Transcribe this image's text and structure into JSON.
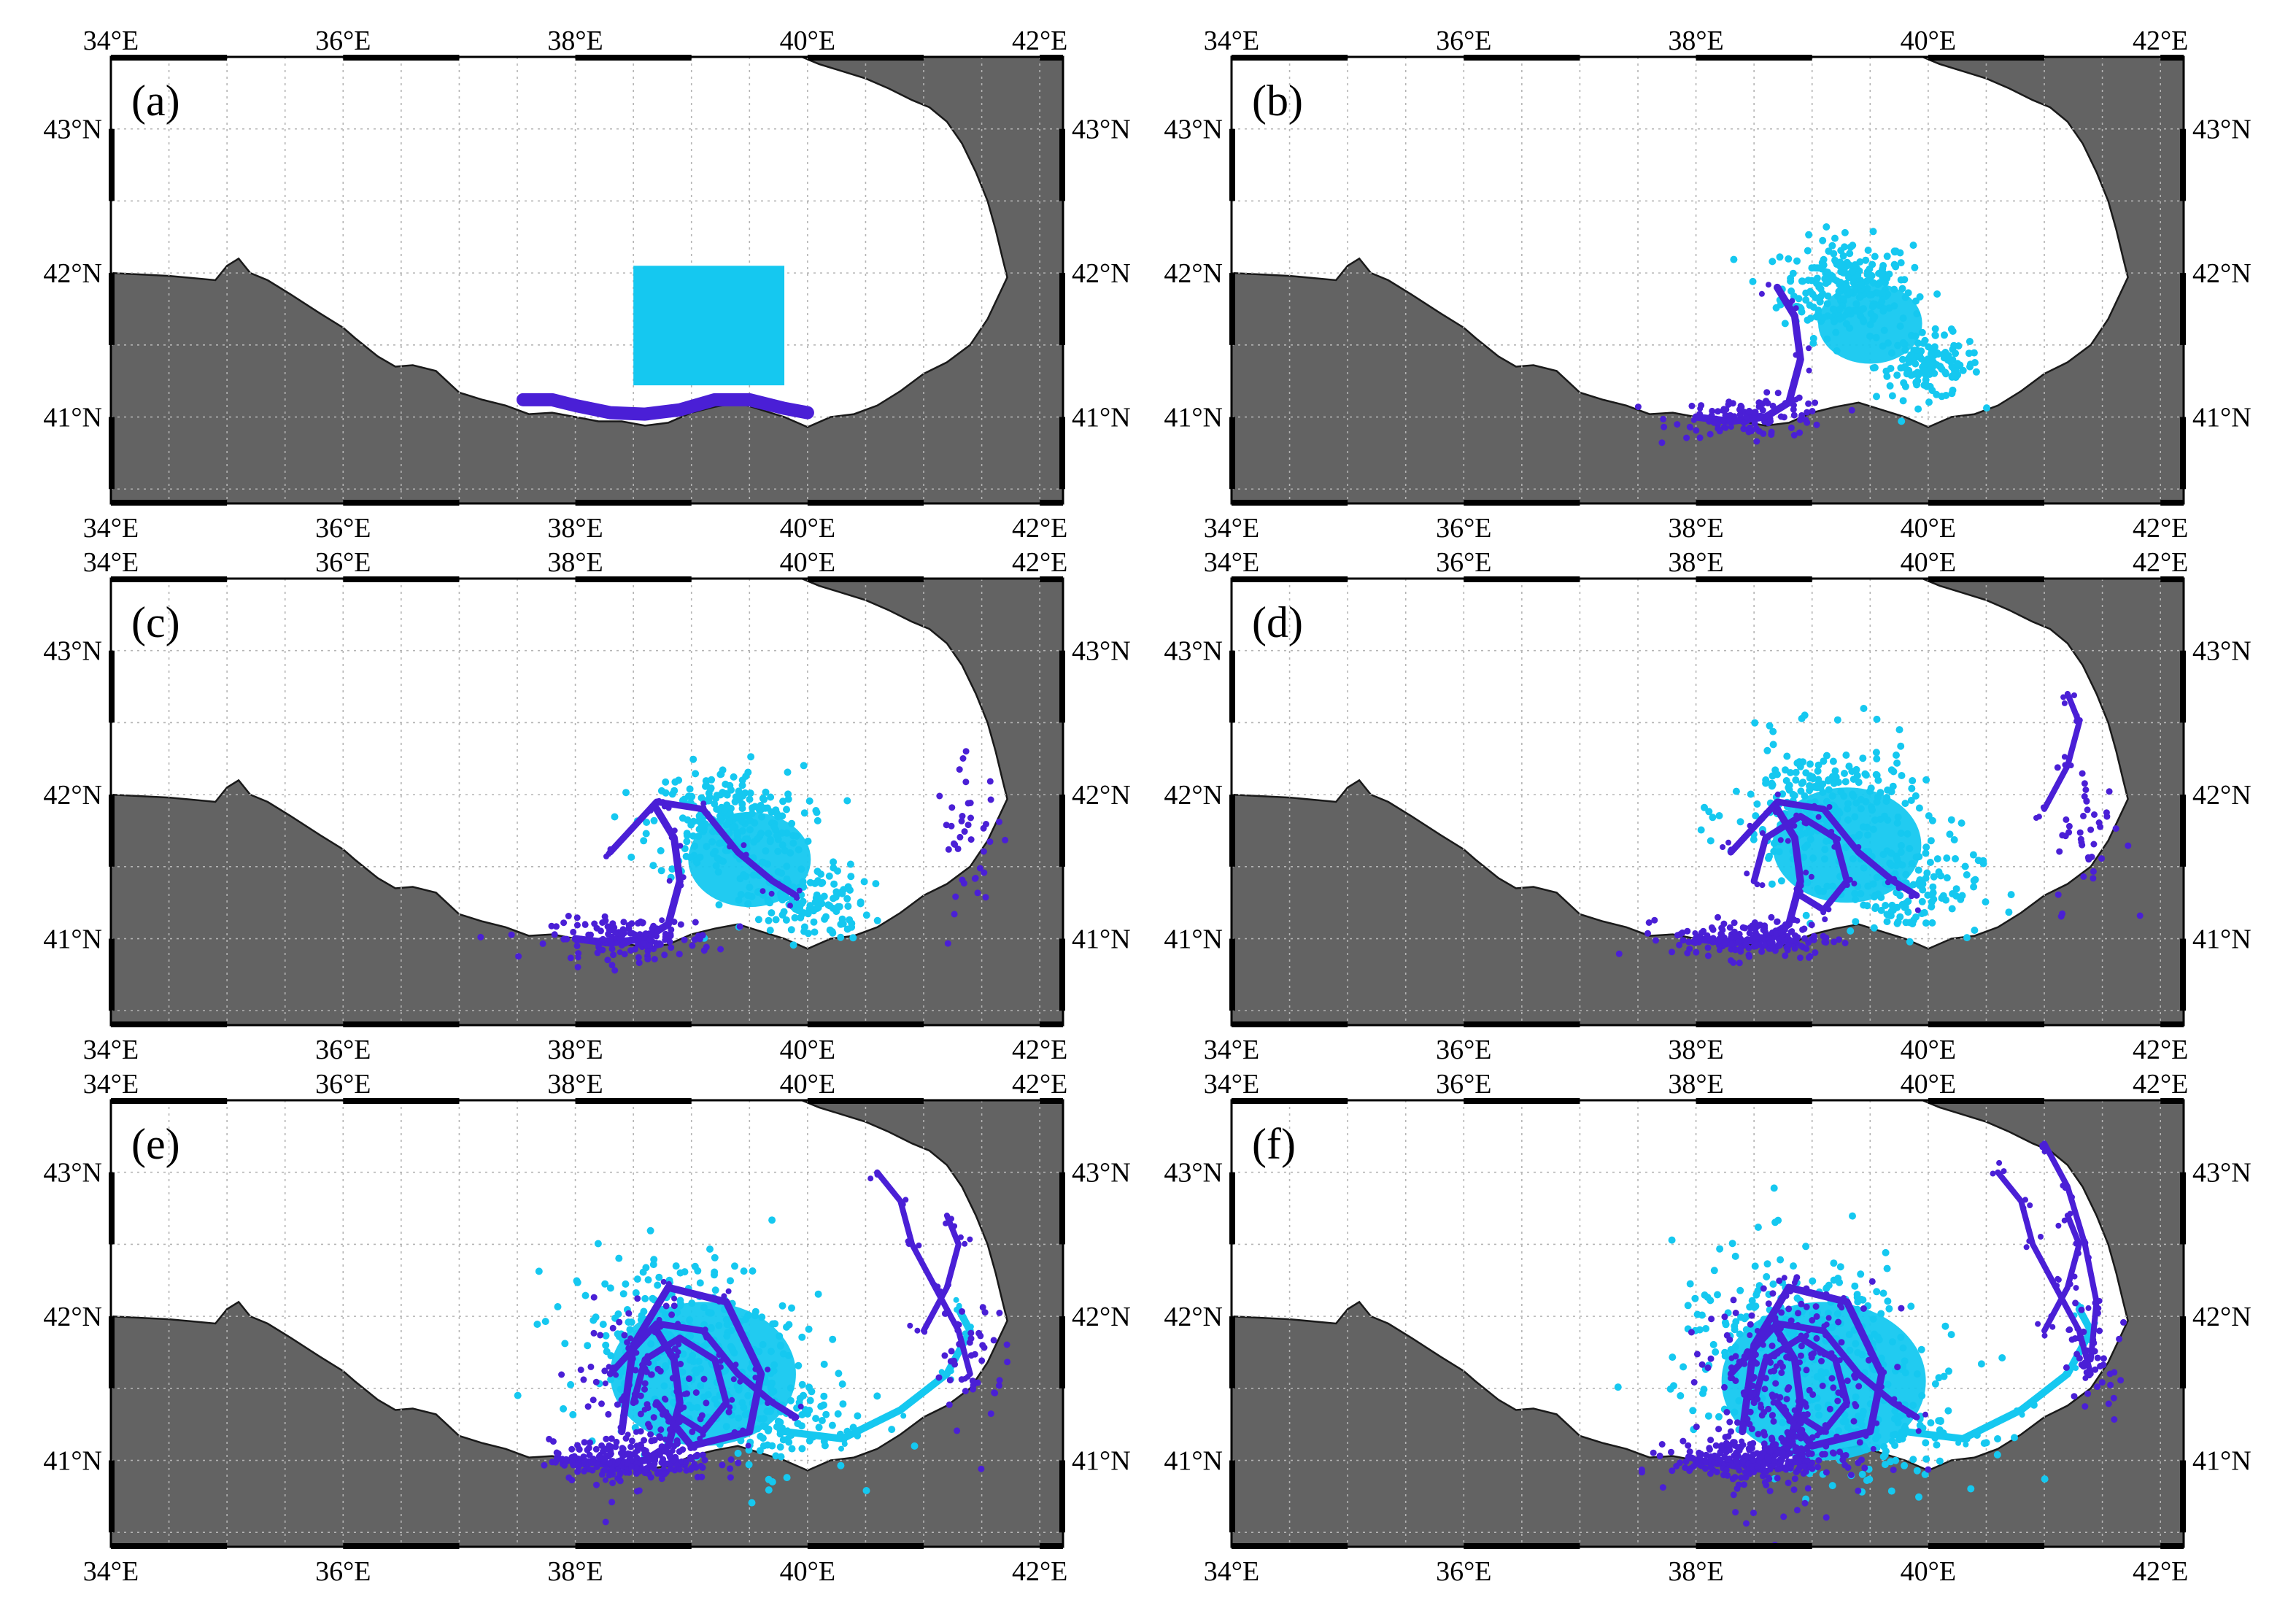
{
  "figure": {
    "panels": [
      {
        "label": "(a)",
        "stage": 0
      },
      {
        "label": "(b)",
        "stage": 1
      },
      {
        "label": "(c)",
        "stage": 2
      },
      {
        "label": "(d)",
        "stage": 3
      },
      {
        "label": "(e)",
        "stage": 4
      },
      {
        "label": "(f)",
        "stage": 5
      }
    ],
    "lon_ticks": [
      {
        "value": 34,
        "label": "34°E"
      },
      {
        "value": 36,
        "label": "36°E"
      },
      {
        "value": 38,
        "label": "38°E"
      },
      {
        "value": 40,
        "label": "40°E"
      },
      {
        "value": 42,
        "label": "42°E"
      }
    ],
    "lat_ticks": [
      {
        "value": 41,
        "label": "41°N"
      },
      {
        "value": 42,
        "label": "42°N"
      },
      {
        "value": 43,
        "label": "43°N"
      }
    ],
    "extent": {
      "lon": [
        34,
        42.2
      ],
      "lat": [
        40.4,
        43.5
      ]
    },
    "colors": {
      "land": "#636363",
      "sea": "#ffffff",
      "grid": "#b4b4b4",
      "particles_light": "#15c8f0",
      "particles_dark": "#4a1fd6"
    },
    "initial_box": {
      "lon": [
        38.5,
        39.8
      ],
      "lat": [
        41.22,
        42.05
      ]
    }
  }
}
